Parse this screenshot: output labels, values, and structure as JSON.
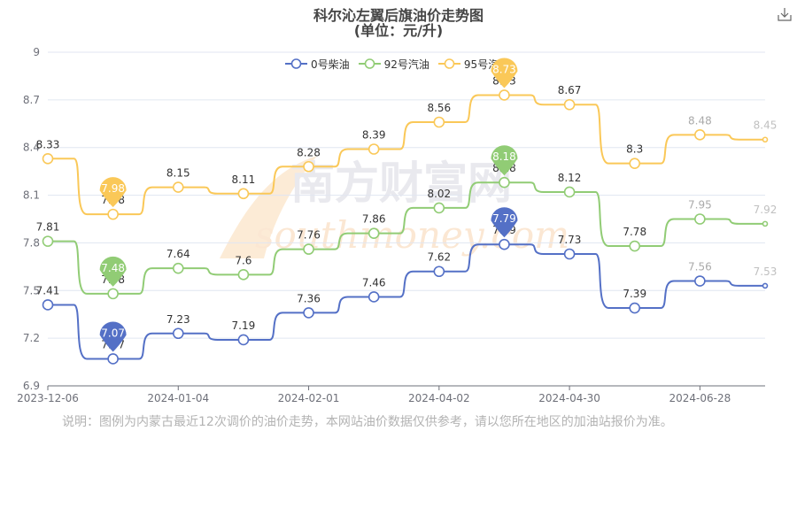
{
  "header": {
    "title": "科尔沁左翼后旗油价走势图",
    "subtitle": "(单位：元/升)",
    "download_icon": "download-icon"
  },
  "colors": {
    "diesel": "#5470c6",
    "gas92": "#91cc75",
    "gas95": "#fac858",
    "axis": "#6e7079",
    "grid": "#e0e6f1",
    "note": "#b3b3b3"
  },
  "watermark": {
    "text_cn": "南方财富网",
    "text_en": "southmoney.com"
  },
  "chart_data": {
    "type": "line",
    "title": "科尔沁左翼后旗油价走势图",
    "subtitle": "(单位：元/升)",
    "xlabel": "",
    "ylabel": "",
    "ylim": [
      6.9,
      9
    ],
    "y_ticks": [
      "6.9",
      "7.2",
      "7.5",
      "7.8",
      "8.1",
      "8.4",
      "8.7",
      "9"
    ],
    "x_tick_labels": [
      "2023-12-06",
      "2024-01-04",
      "2024-02-01",
      "2024-04-02",
      "2024-04-30",
      "2024-06-28"
    ],
    "x_tick_positions": [
      0,
      2,
      4,
      6,
      8,
      10
    ],
    "legend_position": "top",
    "grid": true,
    "series": [
      {
        "name": "0号柴油",
        "color": "#5470c6",
        "values": [
          7.41,
          7.07,
          7.23,
          7.19,
          7.36,
          7.46,
          7.62,
          7.79,
          7.73,
          7.39,
          7.56,
          7.53
        ],
        "labels": [
          "7.41",
          "7.07",
          "7.23",
          "7.19",
          "7.36",
          "7.46",
          "7.62",
          "7.79",
          "7.73",
          "7.39",
          "7.56",
          "7.53"
        ],
        "min_marker": "7.07",
        "max_marker": "7.79"
      },
      {
        "name": "92号汽油",
        "color": "#91cc75",
        "values": [
          7.81,
          7.48,
          7.64,
          7.6,
          7.76,
          7.86,
          8.02,
          8.18,
          8.12,
          7.78,
          7.95,
          7.92
        ],
        "labels": [
          "7.81",
          "7.48",
          "7.64",
          "7.6",
          "7.76",
          "7.86",
          "8.02",
          "8.18",
          "8.12",
          "7.78",
          "7.95",
          "7.92"
        ],
        "min_marker": "7.48",
        "max_marker": "8.18"
      },
      {
        "name": "95号汽油",
        "color": "#fac858",
        "values": [
          8.33,
          7.98,
          8.15,
          8.11,
          8.28,
          8.39,
          8.56,
          8.73,
          8.67,
          8.3,
          8.48,
          8.45
        ],
        "labels": [
          "8.33",
          "7.98",
          "8.15",
          "8.11",
          "8.28",
          "8.39",
          "8.56",
          "8.73",
          "8.67",
          "8.3",
          "8.48",
          "8.45"
        ],
        "min_marker": "7.98",
        "max_marker": "8.73"
      }
    ]
  },
  "note": "说明：图例为内蒙古最近12次调价的油价走势，本网站油价数据仅供参考，请以您所在地区的加油站报价为准。"
}
